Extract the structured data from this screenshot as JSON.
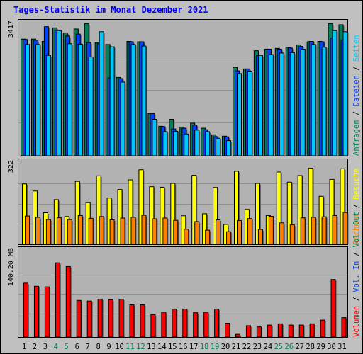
{
  "title": "Tages-Statistik im Monat Dezember 2021",
  "colors": {
    "background": "#c0c0c0",
    "panel": "#b2b2b2",
    "anfragen": "#00805c",
    "dateien": "#0042ff",
    "seiten": "#00c8ff",
    "besuche": "#ffff00",
    "rechner": "#ff8000",
    "volumen": "#ff0000",
    "title": "#0000ff"
  },
  "chart_data": [
    {
      "type": "bar",
      "name": "hits",
      "ytick_label": "3417",
      "ymax": 3417,
      "side_labels": [
        {
          "text": "Anfragen",
          "color": "#00805c"
        },
        {
          "text": " / ",
          "color": "#000000"
        },
        {
          "text": "Dateien",
          "color": "#0042ff"
        },
        {
          "text": " / ",
          "color": "#000000"
        },
        {
          "text": "Seiten",
          "color": "#00c8ff"
        }
      ],
      "categories": [
        "1",
        "2",
        "3",
        "4",
        "5",
        "6",
        "7",
        "8",
        "9",
        "10",
        "11",
        "12",
        "13",
        "14",
        "15",
        "16",
        "17",
        "18",
        "19",
        "20",
        "21",
        "22",
        "23",
        "24",
        "25",
        "26",
        "27",
        "28",
        "29",
        "30",
        "31"
      ],
      "series": [
        {
          "name": "Anfragen",
          "color": "#00805c",
          "values": [
            3020,
            3020,
            2960,
            3310,
            3180,
            3280,
            3420,
            2930,
            2880,
            2030,
            2960,
            2950,
            1100,
            770,
            950,
            750,
            850,
            720,
            550,
            515,
            2290,
            2250,
            2720,
            2760,
            2780,
            2810,
            2870,
            2950,
            2960,
            3420,
            3390
          ]
        },
        {
          "name": "Dateien",
          "color": "#0042ff",
          "values": [
            3010,
            2990,
            3340,
            3250,
            3100,
            3150,
            2930,
            2900,
            2020,
            2000,
            2950,
            2950,
            1100,
            760,
            700,
            720,
            800,
            680,
            500,
            500,
            2200,
            2250,
            2600,
            2760,
            2760,
            2790,
            2830,
            2960,
            2950,
            3050,
            3000
          ]
        },
        {
          "name": "Seiten",
          "color": "#00c8ff",
          "values": [
            2880,
            2880,
            2600,
            3240,
            2900,
            2890,
            2560,
            3210,
            2820,
            1910,
            2880,
            2840,
            950,
            630,
            640,
            570,
            670,
            630,
            460,
            400,
            2130,
            2190,
            2600,
            2620,
            2660,
            2670,
            2760,
            2880,
            2810,
            3240,
            3210
          ]
        }
      ]
    },
    {
      "type": "bar",
      "name": "visits",
      "ytick_label": "322",
      "ymax": 322,
      "side_labels": [
        {
          "text": "Rechner",
          "color": "#ff8000"
        },
        {
          "text": " / ",
          "color": "#000000"
        },
        {
          "text": "Besuche",
          "color": "#ffff00"
        }
      ],
      "categories": [
        "1",
        "2",
        "3",
        "4",
        "5",
        "6",
        "7",
        "8",
        "9",
        "10",
        "11",
        "12",
        "13",
        "14",
        "15",
        "16",
        "17",
        "18",
        "19",
        "20",
        "21",
        "22",
        "23",
        "24",
        "25",
        "26",
        "27",
        "28",
        "29",
        "30",
        "31"
      ],
      "series": [
        {
          "name": "Besuche",
          "color": "#ffff00",
          "values": [
            240,
            212,
            126,
            178,
            111,
            250,
            166,
            272,
            184,
            218,
            256,
            296,
            229,
            227,
            242,
            114,
            274,
            122,
            226,
            80,
            290,
            139,
            242,
            115,
            287,
            247,
            273,
            302,
            191,
            258,
            300
          ]
        },
        {
          "name": "Rechner",
          "color": "#ff8000",
          "values": [
            113,
            108,
            99,
            106,
            99,
            115,
            104,
            111,
            98,
            105,
            108,
            116,
            102,
            105,
            96,
            61,
            91,
            57,
            98,
            51,
            95,
            103,
            60,
            112,
            86,
            78,
            106,
            108,
            110,
            115,
            127
          ]
        }
      ]
    },
    {
      "type": "bar",
      "name": "volume",
      "ytick_label": "140.20 MB",
      "ymax": 140.2,
      "side_labels": [
        {
          "text": "Volumen",
          "color": "#ff0000"
        },
        {
          "text": " / ",
          "color": "#000000"
        },
        {
          "text": "Vol. In",
          "color": "#0042ff"
        },
        {
          "text": " / ",
          "color": "#000000"
        },
        {
          "text": "Vol. Out",
          "color": "#00805c"
        }
      ],
      "categories": [
        "1",
        "2",
        "3",
        "4",
        "5",
        "6",
        "7",
        "8",
        "9",
        "10",
        "11",
        "12",
        "13",
        "14",
        "15",
        "16",
        "17",
        "18",
        "19",
        "20",
        "21",
        "22",
        "23",
        "24",
        "25",
        "26",
        "27",
        "28",
        "29",
        "30",
        "31"
      ],
      "series": [
        {
          "name": "Volumen",
          "color": "#ff0000",
          "values": [
            88,
            83,
            82,
            121,
            115,
            60,
            59,
            62,
            61,
            62,
            53,
            53,
            37,
            41,
            46,
            46,
            40,
            41,
            46,
            23,
            5,
            19,
            17,
            20,
            22,
            20,
            20,
            22,
            28,
            94,
            32
          ]
        }
      ]
    }
  ],
  "x_labels": [
    {
      "text": "1",
      "weekend": false
    },
    {
      "text": "2",
      "weekend": false
    },
    {
      "text": "3",
      "weekend": false
    },
    {
      "text": "4",
      "weekend": true
    },
    {
      "text": "5",
      "weekend": true
    },
    {
      "text": "6",
      "weekend": false
    },
    {
      "text": "7",
      "weekend": false
    },
    {
      "text": "8",
      "weekend": false
    },
    {
      "text": "9",
      "weekend": false
    },
    {
      "text": "10",
      "weekend": false
    },
    {
      "text": "11",
      "weekend": true
    },
    {
      "text": "12",
      "weekend": true
    },
    {
      "text": "13",
      "weekend": false
    },
    {
      "text": "14",
      "weekend": false
    },
    {
      "text": "15",
      "weekend": false
    },
    {
      "text": "16",
      "weekend": false
    },
    {
      "text": "17",
      "weekend": false
    },
    {
      "text": "18",
      "weekend": true
    },
    {
      "text": "19",
      "weekend": true
    },
    {
      "text": "20",
      "weekend": false
    },
    {
      "text": "21",
      "weekend": false
    },
    {
      "text": "22",
      "weekend": false
    },
    {
      "text": "23",
      "weekend": false
    },
    {
      "text": "24",
      "weekend": false
    },
    {
      "text": "25",
      "weekend": true
    },
    {
      "text": "26",
      "weekend": true
    },
    {
      "text": "27",
      "weekend": false
    },
    {
      "text": "28",
      "weekend": false
    },
    {
      "text": "29",
      "weekend": false
    },
    {
      "text": "30",
      "weekend": false
    },
    {
      "text": "31",
      "weekend": false
    }
  ],
  "weekend_label_color": "#00805c"
}
